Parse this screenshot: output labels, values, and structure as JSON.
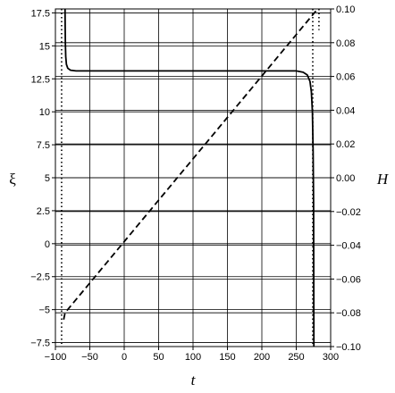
{
  "chart_data": {
    "type": "line",
    "xlabel": "t",
    "ylabel_left": "ξ",
    "ylabel_right": "H",
    "xlim": [
      -100,
      300
    ],
    "ylim_left": [
      -7.8,
      17.8
    ],
    "ylim_right": [
      -0.1,
      0.1
    ],
    "grid": true,
    "x_ticks": [
      "−100",
      "−50",
      "0",
      "50",
      "100",
      "150",
      "200",
      "250",
      "300"
    ],
    "x_tick_values": [
      -100,
      -50,
      0,
      50,
      100,
      150,
      200,
      250,
      300
    ],
    "y_left_ticks": [
      "−7.5",
      "−5",
      "−2.5",
      "0",
      "2.5",
      "5",
      "7.5",
      "10",
      "12.5",
      "15",
      "17.5"
    ],
    "y_left_tick_values": [
      -7.5,
      -5,
      -2.5,
      0,
      2.5,
      5,
      7.5,
      10,
      12.5,
      15,
      17.5
    ],
    "y_right_ticks": [
      "−0.10",
      "−0.08",
      "−0.06",
      "−0.04",
      "−0.02",
      "0.00",
      "0.02",
      "0.04",
      "0.06",
      "0.08",
      "0.10"
    ],
    "y_right_tick_values": [
      -0.1,
      -0.08,
      -0.06,
      -0.04,
      -0.02,
      0.0,
      0.02,
      0.04,
      0.06,
      0.08,
      0.1
    ],
    "series": [
      {
        "style": "solid",
        "axis": "left",
        "x": [
          -86,
          -85.8,
          -85.5,
          -85,
          -84,
          -82,
          -78,
          -70,
          -50,
          0,
          100,
          200,
          250,
          260,
          266,
          270,
          272,
          273.5,
          274.5,
          275.2,
          275.6
        ],
        "y": [
          17.8,
          16.5,
          15.2,
          14.2,
          13.6,
          13.3,
          13.15,
          13.1,
          13.1,
          13.1,
          13.1,
          13.1,
          13.1,
          13.0,
          12.8,
          12.3,
          11.5,
          10.0,
          7.0,
          3.0,
          -7.8
        ]
      },
      {
        "style": "dashed",
        "axis": "right",
        "x": [
          -88,
          -86,
          281
        ],
        "y": [
          -0.084,
          -0.08,
          0.1
        ]
      },
      {
        "style": "dotted",
        "axis": "left",
        "x": [
          -91,
          -91,
          -89,
          -89
        ],
        "y": [
          17.8,
          17.8,
          -7.8,
          -7.8
        ],
        "segments": [
          {
            "x": [
              -91,
              -91
            ],
            "y": [
              17.8,
              -7.8
            ]
          },
          {
            "x": [
              274,
              274
            ],
            "y": [
              17.8,
              -7.8
            ]
          },
          {
            "x": [
              283,
              283
            ],
            "y": [
              17.8,
              16.2
            ]
          }
        ]
      }
    ]
  }
}
